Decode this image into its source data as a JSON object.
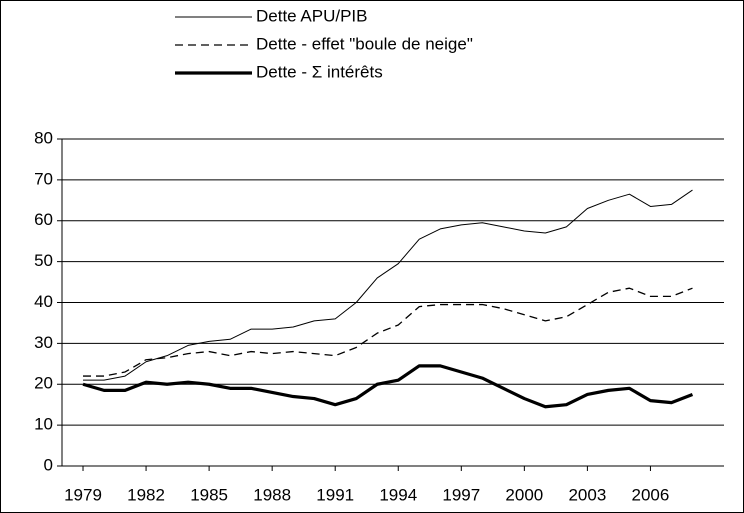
{
  "chart_data": {
    "type": "line",
    "x": [
      1979,
      1980,
      1981,
      1982,
      1983,
      1984,
      1985,
      1986,
      1987,
      1988,
      1989,
      1990,
      1991,
      1992,
      1993,
      1994,
      1995,
      1996,
      1997,
      1998,
      1999,
      2000,
      2001,
      2002,
      2003,
      2004,
      2005,
      2006,
      2007,
      2008
    ],
    "series": [
      {
        "name": "Dette APU/PIB",
        "color": "#000000",
        "width": 1,
        "dash": false,
        "values": [
          21,
          21,
          22,
          25.5,
          27,
          29.5,
          30.5,
          31,
          33.5,
          33.5,
          34,
          35.5,
          36,
          40,
          46,
          49.5,
          55.5,
          58,
          59,
          59.5,
          58.5,
          57.5,
          57,
          58.5,
          63,
          65,
          66.5,
          63.5,
          64,
          67.5
        ]
      },
      {
        "name": "Dette - effet \"boule de neige\"",
        "color": "#000000",
        "width": 1.3,
        "dash": true,
        "values": [
          22,
          22,
          23,
          26,
          26.5,
          27.5,
          28,
          27,
          28,
          27.5,
          28,
          27.5,
          27,
          29,
          32.5,
          34.5,
          39,
          39.5,
          39.5,
          39.5,
          38.5,
          37,
          35.5,
          36.5,
          39.5,
          42.5,
          43.5,
          41.5,
          41.5,
          43.5
        ]
      },
      {
        "name": "Dette - Σ intérêts",
        "color": "#000000",
        "width": 3.2,
        "dash": false,
        "values": [
          20,
          18.5,
          18.5,
          20.5,
          20,
          20.5,
          20,
          19,
          19,
          18,
          17,
          16.5,
          15,
          16.5,
          20,
          21,
          24.5,
          24.5,
          23,
          21.5,
          19,
          16.5,
          14.5,
          15,
          17.5,
          18.5,
          19,
          16,
          15.5,
          17.5
        ]
      }
    ],
    "xlim": [
      1978,
      2009.5
    ],
    "xticks": [
      1979,
      1982,
      1985,
      1988,
      1991,
      1994,
      1997,
      2000,
      2003,
      2006
    ],
    "ylim": [
      0,
      80
    ],
    "yticks": [
      0,
      10,
      20,
      30,
      40,
      50,
      60,
      70,
      80
    ],
    "grid": true
  }
}
